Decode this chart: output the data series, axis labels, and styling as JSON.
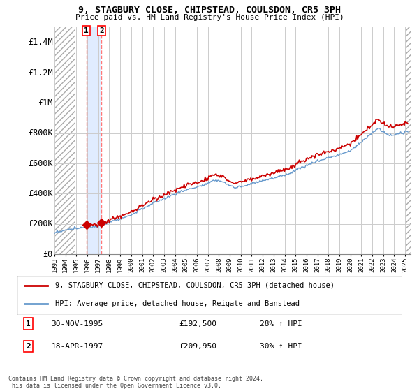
{
  "title": "9, STAGBURY CLOSE, CHIPSTEAD, COULSDON, CR5 3PH",
  "subtitle": "Price paid vs. HM Land Registry's House Price Index (HPI)",
  "legend_label_red": "9, STAGBURY CLOSE, CHIPSTEAD, COULSDON, CR5 3PH (detached house)",
  "legend_label_blue": "HPI: Average price, detached house, Reigate and Banstead",
  "footer": "Contains HM Land Registry data © Crown copyright and database right 2024.\nThis data is licensed under the Open Government Licence v3.0.",
  "sale1_label": "1",
  "sale1_date": "30-NOV-1995",
  "sale1_price": "£192,500",
  "sale1_hpi": "28% ↑ HPI",
  "sale2_label": "2",
  "sale2_date": "18-APR-1997",
  "sale2_price": "£209,950",
  "sale2_hpi": "30% ↑ HPI",
  "sale1_x": 1995.92,
  "sale1_y": 192500,
  "sale2_x": 1997.3,
  "sale2_y": 209950,
  "ylim": [
    0,
    1500000
  ],
  "yticks": [
    0,
    200000,
    400000,
    600000,
    800000,
    1000000,
    1200000,
    1400000
  ],
  "ytick_labels": [
    "£0",
    "£200K",
    "£400K",
    "£600K",
    "£800K",
    "£1M",
    "£1.2M",
    "£1.4M"
  ],
  "xlim_start": 1993.0,
  "xlim_end": 2025.5,
  "hatch_end_x": 1994.83,
  "sale1_vline_x": 1995.92,
  "sale2_vline_x": 1997.3,
  "background_color": "#ffffff",
  "hatch_color": "#aaaaaa",
  "blue_fill_color": "#cce0ff",
  "red_line_color": "#cc0000",
  "blue_line_color": "#6699cc",
  "vline_color": "#ff7777",
  "grid_color": "#cccccc"
}
